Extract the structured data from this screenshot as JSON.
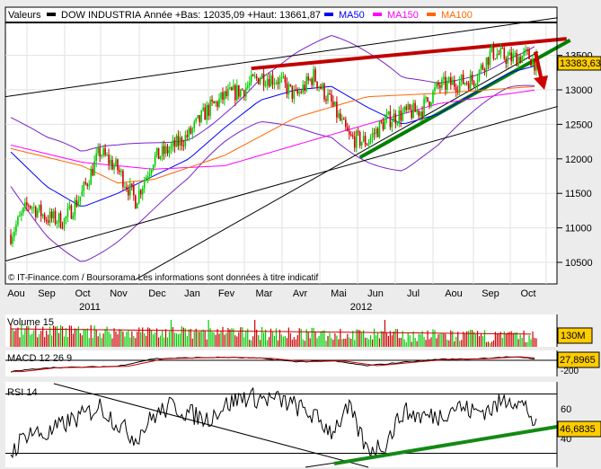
{
  "header": {
    "valeurs_label": "Valeurs",
    "symbol": "DOW INDUSTRIA",
    "range_text": "Année +Bas: 12035,09 +Haut: 13661,87",
    "legend": [
      {
        "name": "MA50",
        "color": "#0000ff"
      },
      {
        "name": "MA150",
        "color": "#ff00ff"
      },
      {
        "name": "MA100",
        "color": "#ff6600"
      }
    ]
  },
  "footer_note": "© IT-Finance.com / Boursorama Les informations sont données à titre indicatif",
  "chart_data": [
    {
      "type": "candlestick",
      "title": "DOW INDUSTRIA",
      "x_unit": "trading day index",
      "months": [
        "Aou",
        "Sep",
        "Oct",
        "Nov",
        "Dec",
        "Jan",
        "Fev",
        "Mar",
        "Avr",
        "Mai",
        "Jun",
        "Jul",
        "Aou",
        "Sep",
        "Oct"
      ],
      "years": [
        "2011",
        "2012"
      ],
      "y_ticks": [
        10500,
        11000,
        11500,
        12000,
        12500,
        13000,
        13500
      ],
      "ylim": [
        10250,
        13900
      ],
      "last_value": "13383,63",
      "close": {
        "x": [
          0,
          10,
          20,
          30,
          40,
          50,
          60,
          70,
          80,
          90,
          100,
          110,
          120,
          130,
          140,
          150,
          160,
          170,
          180,
          190,
          200,
          210,
          220,
          230,
          240,
          250,
          260,
          270,
          280,
          290,
          295
        ],
        "y": [
          10900,
          11350,
          11150,
          11100,
          11500,
          12100,
          11850,
          11400,
          12000,
          12150,
          12350,
          12700,
          12900,
          13000,
          13200,
          13150,
          12900,
          13200,
          12800,
          12300,
          12250,
          12550,
          12650,
          12700,
          13050,
          13100,
          13150,
          13550,
          13450,
          13500,
          13383
        ]
      },
      "series": [
        {
          "name": "MA50",
          "color": "#0000ff",
          "x": [
            0,
            20,
            40,
            60,
            80,
            100,
            120,
            140,
            160,
            180,
            200,
            220,
            240,
            260,
            280,
            295
          ],
          "y": [
            12100,
            11600,
            11300,
            11500,
            11750,
            12000,
            12450,
            12850,
            13000,
            13050,
            12750,
            12500,
            12650,
            12950,
            13250,
            13350
          ]
        },
        {
          "name": "MA150",
          "color": "#ff00ff",
          "x": [
            0,
            40,
            80,
            120,
            160,
            200,
            240,
            295
          ],
          "y": [
            12200,
            11950,
            11850,
            11900,
            12200,
            12500,
            12800,
            13000
          ]
        },
        {
          "name": "MA100",
          "color": "#ff6600",
          "x": [
            0,
            40,
            60,
            80,
            120,
            160,
            200,
            240,
            295
          ],
          "y": [
            12150,
            11900,
            11650,
            11700,
            12050,
            12600,
            12900,
            12950,
            13050
          ]
        }
      ],
      "trendlines": [
        {
          "name": "resistance",
          "color": "#c00000",
          "from": [
            135,
            13310
          ],
          "to": [
            312,
            13740
          ]
        },
        {
          "name": "support",
          "color": "#008000",
          "from": [
            196,
            12020
          ],
          "to": [
            314,
            13720
          ]
        },
        {
          "name": "long-trend-1",
          "color": "#000000",
          "from": [
            -3,
            12900
          ],
          "to": [
            307,
            14045
          ]
        },
        {
          "name": "long-trend-2",
          "color": "#000000",
          "from": [
            -3,
            10520
          ],
          "to": [
            307,
            12760
          ]
        },
        {
          "name": "long-trend-3",
          "color": "#000000",
          "from": [
            70,
            10250
          ],
          "to": [
            296,
            13550
          ]
        }
      ]
    },
    {
      "type": "bar",
      "title": "Volume 15",
      "last_value": "130M"
    },
    {
      "type": "line",
      "title": "MACD 12 26 9",
      "y_ticks": [
        -200
      ],
      "last_value": "27,8965",
      "x": [
        0,
        20,
        40,
        60,
        80,
        100,
        120,
        140,
        160,
        180,
        200,
        220,
        240,
        260,
        280,
        295
      ],
      "macd": [
        -230,
        -150,
        -140,
        -120,
        30,
        50,
        60,
        40,
        -30,
        -10,
        -110,
        -40,
        20,
        30,
        70,
        28
      ]
    },
    {
      "type": "line",
      "title": "RSI 14",
      "y_ticks": [
        40,
        60
      ],
      "last_value": "46,6835",
      "x": [
        0,
        10,
        20,
        30,
        40,
        50,
        60,
        70,
        80,
        90,
        100,
        110,
        120,
        130,
        140,
        150,
        160,
        170,
        180,
        190,
        200,
        210,
        220,
        230,
        240,
        250,
        260,
        270,
        280,
        290,
        295
      ],
      "rsi": [
        30,
        45,
        42,
        50,
        55,
        62,
        50,
        40,
        55,
        62,
        57,
        53,
        62,
        68,
        67,
        66,
        62,
        55,
        45,
        60,
        32,
        36,
        58,
        55,
        55,
        62,
        58,
        60,
        68,
        60,
        47
      ]
    }
  ]
}
